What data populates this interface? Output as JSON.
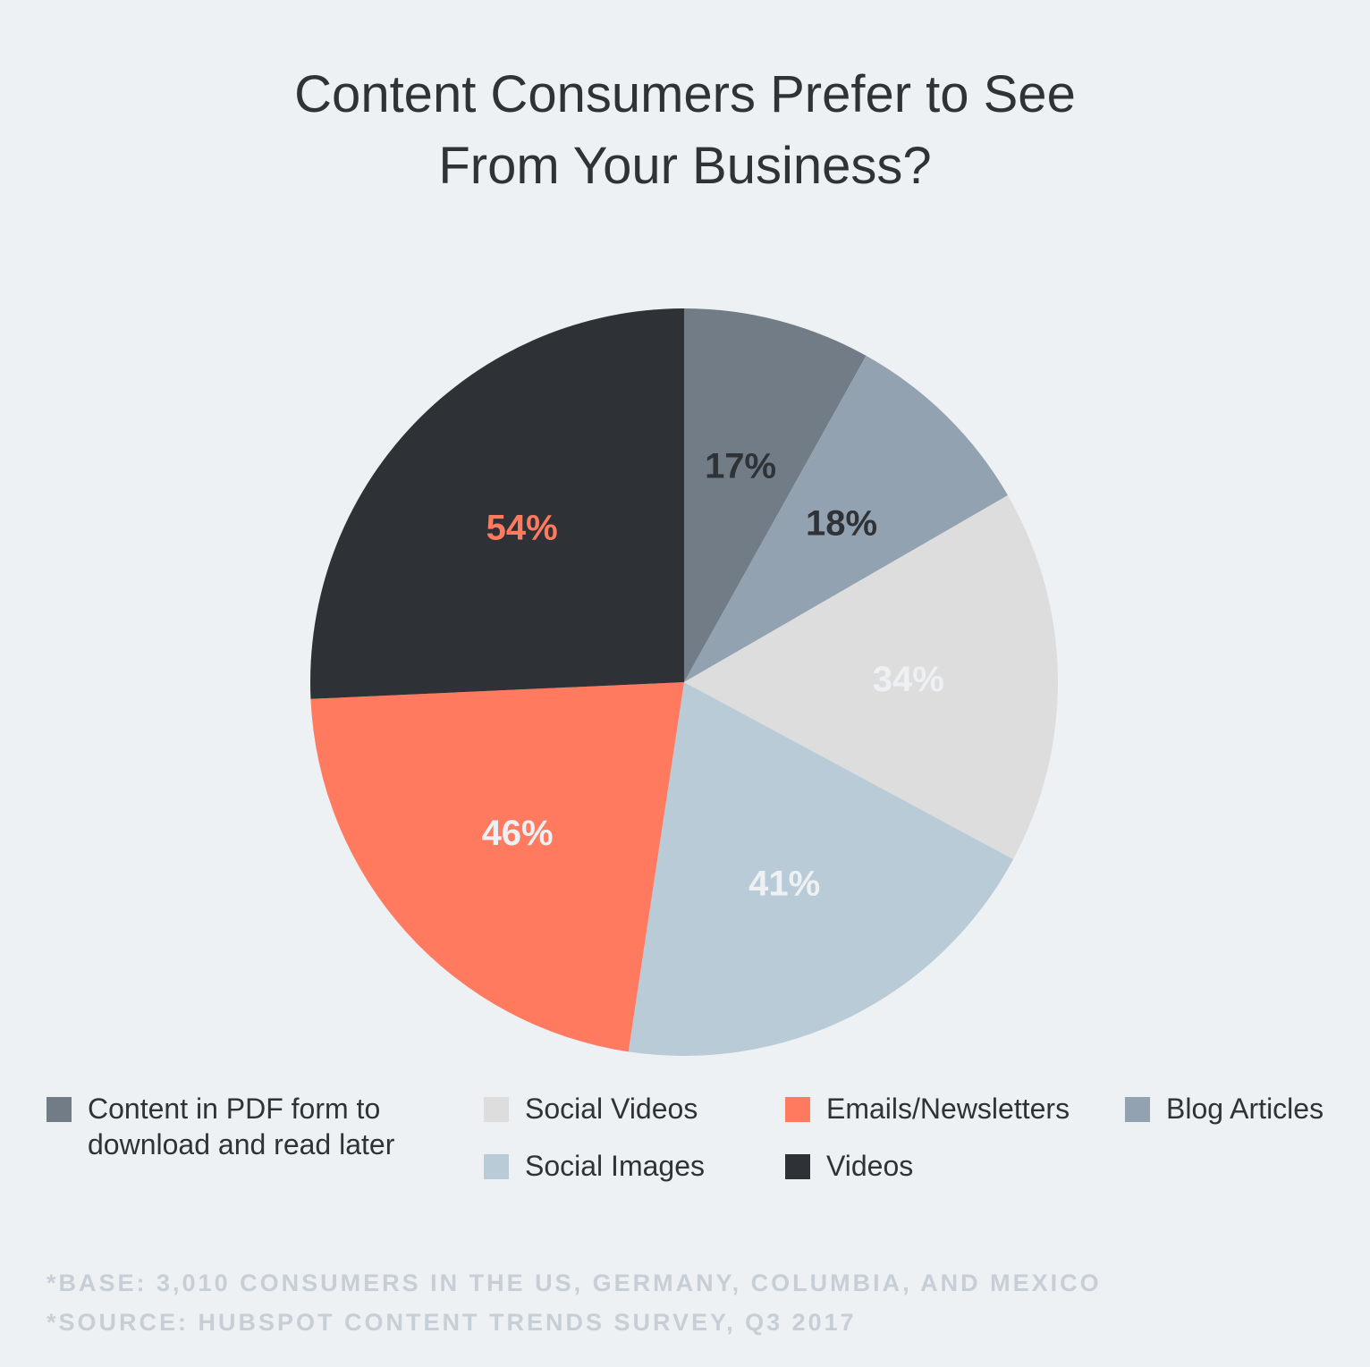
{
  "title_lines": [
    "Content Consumers Prefer to See",
    "From Your Business?"
  ],
  "chart_data": {
    "type": "pie",
    "title": "Content Consumers Prefer to See From Your Business?",
    "slices": [
      {
        "name": "Content in PDF form to download and read later",
        "label": "17%",
        "value": 17,
        "color": "#717c86",
        "label_color": "#2f3236"
      },
      {
        "name": "Blog Articles",
        "label": "18%",
        "value": 18,
        "color": "#93a2b0",
        "label_color": "#2f3236"
      },
      {
        "name": "Social Videos",
        "label": "34%",
        "value": 34,
        "color": "#dddddd",
        "label_color": "#edf1f4"
      },
      {
        "name": "Social Images",
        "label": "41%",
        "value": 41,
        "color": "#b9cbd6",
        "label_color": "#edf1f4"
      },
      {
        "name": "Emails/Newsletters",
        "label": "46%",
        "value": 46,
        "color": "#ff7a5f",
        "label_color": "#edf1f4"
      },
      {
        "name": "Videos",
        "label": "54%",
        "value": 54,
        "color": "#2e3236",
        "label_color": "#ff7a5f"
      }
    ],
    "legend": [
      {
        "label_lines": [
          "Content in PDF form to",
          "download and read later"
        ],
        "color": "#717c86"
      },
      {
        "label_lines": [
          "Social Videos"
        ],
        "color": "#dddddd"
      },
      {
        "label_lines": [
          "Emails/Newsletters"
        ],
        "color": "#ff7a5f"
      },
      {
        "label_lines": [
          "Blog Articles"
        ],
        "color": "#93a2b0"
      },
      {
        "label_lines": [
          "Social Images"
        ],
        "color": "#b9cbd6"
      },
      {
        "label_lines": [
          "Videos"
        ],
        "color": "#2e3236"
      }
    ],
    "legend_position": "bottom"
  },
  "footnotes": [
    "*BASE: 3,010 CONSUMERS IN THE US, GERMANY, COLUMBIA, AND MEXICO",
    "*SOURCE: HUBSPOT CONTENT TRENDS SURVEY, Q3 2017"
  ]
}
